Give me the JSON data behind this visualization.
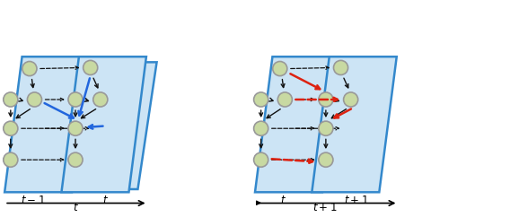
{
  "fig_width": 5.68,
  "fig_height": 2.42,
  "dpi": 100,
  "bg_color": "#ffffff",
  "node_color": "#c8d9a2",
  "node_edge_color": "#999999",
  "plane_color": "#cce4f5",
  "plane_edge_color": "#3388cc",
  "black": "#111111",
  "blue": "#2266dd",
  "red": "#dd2211",
  "lfs": 8.5,
  "node_r": 0.145,
  "xlim": [
    0,
    10.2
  ],
  "ylim": [
    0,
    4.0
  ]
}
